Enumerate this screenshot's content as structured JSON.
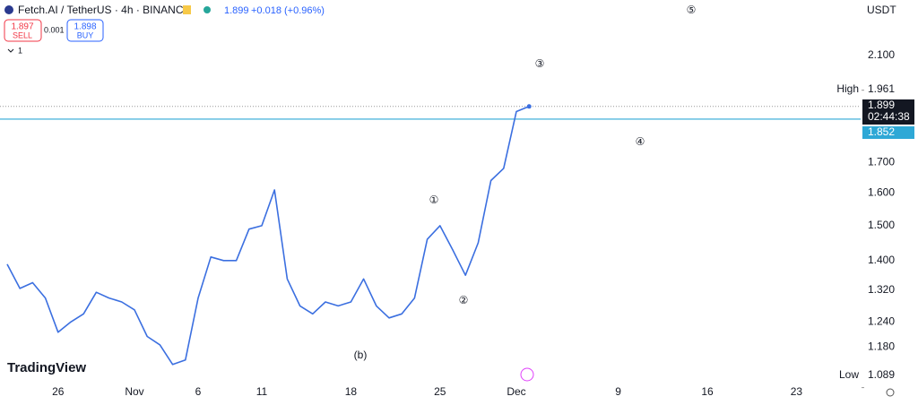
{
  "toolbar": {
    "symbol": "Fetch.AI / TetherUS · 4h · BINANCE",
    "price": "1.899",
    "change": "+0.018 (+0.96%)",
    "sell_price": "1.897",
    "sell": "SELL",
    "spread": "0.001",
    "buy_price": "1.898",
    "buy": "BUY",
    "indicators": "1",
    "currency": "USDT",
    "brand": "TradingView"
  },
  "chart_data": {
    "type": "line",
    "log_scale": true,
    "grid": false,
    "categories": [
      null,
      null,
      null,
      null,
      "26",
      null,
      null,
      null,
      null,
      null,
      "Nov",
      null,
      null,
      null,
      null,
      "6",
      null,
      null,
      null,
      null,
      "11",
      null,
      null,
      null,
      null,
      null,
      null,
      "18",
      null,
      null,
      null,
      null,
      null,
      null,
      "25",
      null,
      null,
      null,
      null,
      null,
      "Dec",
      null,
      null,
      null,
      null,
      null,
      null,
      null,
      "9",
      null,
      null,
      null,
      null,
      null,
      null,
      "16",
      null,
      null,
      null,
      null,
      null,
      null,
      "23",
      null,
      null,
      null,
      null
    ],
    "series": [
      {
        "color": "#3b6fe0",
        "values": [
          1.39,
          1.325,
          1.34,
          1.3,
          1.215,
          1.24,
          1.26,
          1.315,
          1.3,
          1.29,
          1.27,
          1.205,
          1.185,
          1.14,
          1.15,
          1.3,
          1.41,
          1.4,
          1.4,
          1.49,
          1.5,
          1.61,
          1.35,
          1.28,
          1.26,
          1.29,
          1.28,
          1.29,
          1.35,
          1.28,
          1.25,
          1.26,
          1.3,
          1.46,
          1.5,
          1.43,
          1.36,
          1.45,
          1.64,
          1.68,
          1.88,
          1.899,
          null,
          null,
          null,
          null,
          null,
          null,
          null,
          null,
          null,
          null,
          null,
          null,
          null,
          null,
          null,
          null,
          null,
          null,
          null,
          null,
          null,
          null,
          null,
          null,
          null
        ]
      }
    ],
    "ylim": [
      1.094,
      2.344
    ],
    "yticks": [
      {
        "value": 2.1,
        "label": "2.100"
      },
      {
        "value": 1.7,
        "label": "1.700"
      },
      {
        "value": 1.6,
        "label": "1.600"
      },
      {
        "value": 1.5,
        "label": "1.500"
      },
      {
        "value": 1.4,
        "label": "1.400"
      },
      {
        "value": 1.32,
        "label": "1.320"
      },
      {
        "value": 1.24,
        "label": "1.240"
      },
      {
        "value": 1.18,
        "label": "1.180"
      }
    ],
    "high": {
      "label": "High",
      "value": 1.961
    },
    "low": {
      "label": "Low",
      "value": 1.089
    },
    "last": {
      "value": 1.899,
      "countdown": "02:44:38"
    },
    "alert_line": {
      "value": 1.852,
      "color": "#2ea8d6"
    },
    "annotations": [
      "(b)",
      "①",
      "②",
      "③",
      "④",
      "⑤"
    ]
  }
}
